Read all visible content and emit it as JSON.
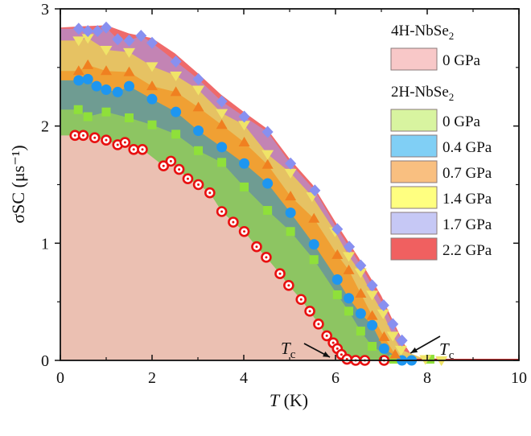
{
  "chart_data": {
    "type": "area",
    "xlabel": "T (K)",
    "ylabel": "σSC (μs⁻¹)",
    "xlim": [
      0,
      10
    ],
    "ylim": [
      0,
      3
    ],
    "xticks": [
      0,
      2,
      4,
      6,
      8,
      10
    ],
    "yticks": [
      0,
      1,
      2,
      3
    ],
    "grid": false,
    "legend_placement": "right",
    "legend_groups": [
      {
        "title": "4H-NbSe",
        "subscript": "2",
        "entries": [
          "4H-0"
        ]
      },
      {
        "title": "2H-NbSe",
        "subscript": "2",
        "entries": [
          "2H-0",
          "2H-0.4",
          "2H-0.7",
          "2H-1.4",
          "2H-1.7",
          "2H-2.2"
        ]
      }
    ],
    "annotations": [
      {
        "text": "T",
        "subscript": "c",
        "target_x": 6.0
      },
      {
        "text": "T",
        "subscript": "c",
        "target_x": 7.6
      }
    ],
    "series": [
      {
        "id": "2H-2.2",
        "name": "2.2 GPa",
        "legend_color": "#f06060",
        "fill": "#ef6a6a",
        "marker": "none",
        "marker_color": "#f06060",
        "x": [
          0,
          0.4,
          1.0,
          1.5,
          2.0,
          2.5,
          3.0,
          3.5,
          4.0,
          4.5,
          5.0,
          5.5,
          6.0,
          6.5,
          7.0,
          7.3,
          7.5,
          7.7,
          10
        ],
        "y": [
          2.84,
          2.85,
          2.86,
          2.79,
          2.75,
          2.62,
          2.45,
          2.27,
          2.12,
          1.98,
          1.72,
          1.5,
          1.18,
          0.88,
          0.55,
          0.3,
          0.14,
          0.02,
          0
        ]
      },
      {
        "id": "2H-1.7",
        "name": "1.7 GPa",
        "legend_color": "#c6c8f5",
        "fill": "#c384b4",
        "marker": "diamond",
        "marker_color": "#8890f0",
        "x": [
          0.4,
          0.6,
          0.81,
          1.0,
          1.25,
          1.5,
          1.76,
          2.0,
          2.52,
          3.01,
          3.52,
          4.01,
          4.52,
          5.02,
          5.55,
          6.04,
          6.3,
          6.55,
          6.8,
          7.05,
          7.25,
          7.45
        ],
        "y": [
          2.83,
          2.81,
          2.81,
          2.84,
          2.74,
          2.73,
          2.77,
          2.71,
          2.55,
          2.4,
          2.21,
          2.08,
          1.95,
          1.68,
          1.45,
          1.12,
          0.97,
          0.81,
          0.64,
          0.47,
          0.31,
          0.17
        ]
      },
      {
        "id": "2H-1.4",
        "name": "1.4 GPa",
        "legend_color": "#ffff80",
        "fill": "#e6c263",
        "marker": "triangle-down",
        "marker_color": "#f0e468",
        "x": [
          0.4,
          0.6,
          1.0,
          1.5,
          2.0,
          2.52,
          3.01,
          3.52,
          4.01,
          4.52,
          5.02,
          5.49,
          5.99,
          6.29,
          6.55,
          6.8,
          7.04,
          7.25,
          7.43,
          7.96,
          8.31
        ],
        "y": [
          2.73,
          2.75,
          2.65,
          2.63,
          2.51,
          2.43,
          2.31,
          2.11,
          2.01,
          1.76,
          1.6,
          1.4,
          1.1,
          0.89,
          0.75,
          0.56,
          0.4,
          0.21,
          0.09,
          0.01,
          0
        ]
      },
      {
        "id": "2H-0.7",
        "name": "0.7 GPa",
        "legend_color": "#f9bf80",
        "fill": "#f0a033",
        "marker": "triangle-up",
        "marker_color": "#f08020",
        "x": [
          0.4,
          0.6,
          1.0,
          1.5,
          2.0,
          2.52,
          3.01,
          3.52,
          4.01,
          4.52,
          5.02,
          5.53,
          6.04,
          6.29,
          6.55,
          6.8,
          7.06,
          7.3
        ],
        "y": [
          2.47,
          2.52,
          2.47,
          2.46,
          2.34,
          2.29,
          2.16,
          2.01,
          1.86,
          1.67,
          1.4,
          1.21,
          0.9,
          0.77,
          0.57,
          0.38,
          0.2,
          0.05
        ]
      },
      {
        "id": "2H-0.4",
        "name": "0.4 GPa",
        "legend_color": "#80cff5",
        "fill": "#6f9c92",
        "marker": "circle",
        "marker_color": "#1e96f0",
        "x": [
          0.4,
          0.6,
          0.79,
          1.0,
          1.25,
          1.5,
          2.0,
          2.52,
          3.01,
          3.52,
          4.01,
          4.52,
          5.02,
          5.53,
          6.04,
          6.29,
          6.55,
          6.8,
          7.06,
          7.45,
          7.66
        ],
        "y": [
          2.39,
          2.4,
          2.34,
          2.31,
          2.29,
          2.34,
          2.23,
          2.12,
          1.96,
          1.82,
          1.68,
          1.51,
          1.26,
          0.99,
          0.69,
          0.53,
          0.4,
          0.3,
          0.1,
          0,
          0
        ]
      },
      {
        "id": "2H-0",
        "name": "0 GPa",
        "legend_color": "#d8f4a0",
        "fill": "#8dc562",
        "marker": "square",
        "marker_color": "#8fe03a",
        "x": [
          0.39,
          0.6,
          1.0,
          1.5,
          2.0,
          2.52,
          3.01,
          3.52,
          4.01,
          4.52,
          5.02,
          5.53,
          6.04,
          6.29,
          6.55,
          6.8,
          7.27,
          8.06
        ],
        "y": [
          2.14,
          2.08,
          2.12,
          2.07,
          2.01,
          1.93,
          1.79,
          1.69,
          1.48,
          1.28,
          1.1,
          0.86,
          0.56,
          0.42,
          0.25,
          0.12,
          0.01,
          0.01
        ]
      },
      {
        "id": "4H-0",
        "name": "0 GPa",
        "legend_color": "#f8c8c8",
        "fill": "#ebc0b2",
        "marker": "circle-dot",
        "marker_color": "#e81010",
        "x": [
          0.32,
          0.5,
          0.75,
          1.0,
          1.25,
          1.41,
          1.6,
          1.79,
          2.25,
          2.41,
          2.59,
          2.78,
          3.01,
          3.26,
          3.52,
          3.77,
          4.01,
          4.28,
          4.49,
          4.79,
          4.98,
          5.25,
          5.44,
          5.63,
          5.81,
          5.95,
          6.04,
          6.13,
          6.25,
          6.44,
          6.64,
          7.06
        ],
        "y": [
          1.92,
          1.92,
          1.9,
          1.88,
          1.84,
          1.86,
          1.8,
          1.8,
          1.66,
          1.7,
          1.63,
          1.55,
          1.5,
          1.43,
          1.27,
          1.18,
          1.1,
          0.97,
          0.88,
          0.74,
          0.64,
          0.52,
          0.42,
          0.31,
          0.21,
          0.15,
          0.1,
          0.05,
          0.01,
          0,
          0,
          0
        ]
      }
    ]
  }
}
